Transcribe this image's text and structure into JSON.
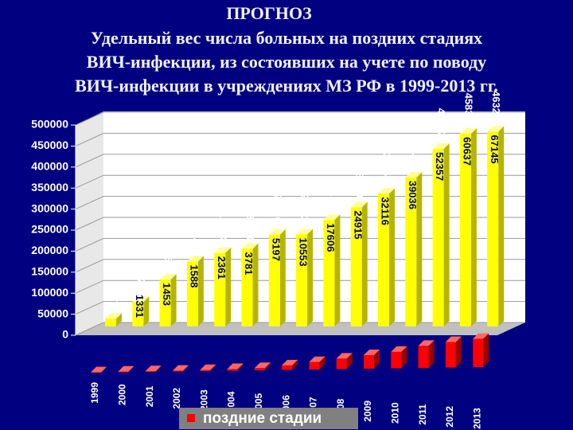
{
  "chart_data": {
    "type": "bar3d",
    "title": "ПРОГНОЗ",
    "subtitle": [
      "Удельный вес числа больных на поздних стадиях",
      "ВИЧ-инфекции, из  состоявших на учете по поводу",
      "ВИЧ-инфекции в учреждениях МЗ РФ в 1999-2013 гг."
    ],
    "categories": [
      "1999",
      "2000",
      "2001",
      "2002",
      "2003",
      "2004",
      "2005",
      "2006",
      "2007",
      "2008",
      "2009",
      "2010",
      "2011",
      "2012",
      "2013"
    ],
    "series": [
      {
        "color": "#ffff00",
        "values": [
          18571,
          58209,
          111512,
          154488,
          174643,
          184650,
          218001,
          218827,
          253418,
          283380,
          315514,
          354469,
          422273,
          458362,
          463284
        ]
      },
      {
        "name": "поздние стадии",
        "color": "#ff0000",
        "values": [
          700,
          1331,
          1453,
          1588,
          2361,
          3781,
          5197,
          10553,
          17606,
          24915,
          32116,
          39036,
          52357,
          60637,
          67145
        ],
        "value_labels": [
          null,
          "1331",
          "1453",
          "1588",
          "2361",
          "3781",
          "5197",
          "10553",
          "17606",
          "24915",
          "32116",
          "39036",
          "52357",
          "60637",
          "67145"
        ]
      }
    ],
    "ylim": [
      0,
      500000
    ],
    "yticks": [
      0,
      50000,
      100000,
      150000,
      200000,
      250000,
      300000,
      350000,
      400000,
      450000,
      500000
    ],
    "grid": true,
    "legend": "bottom"
  }
}
